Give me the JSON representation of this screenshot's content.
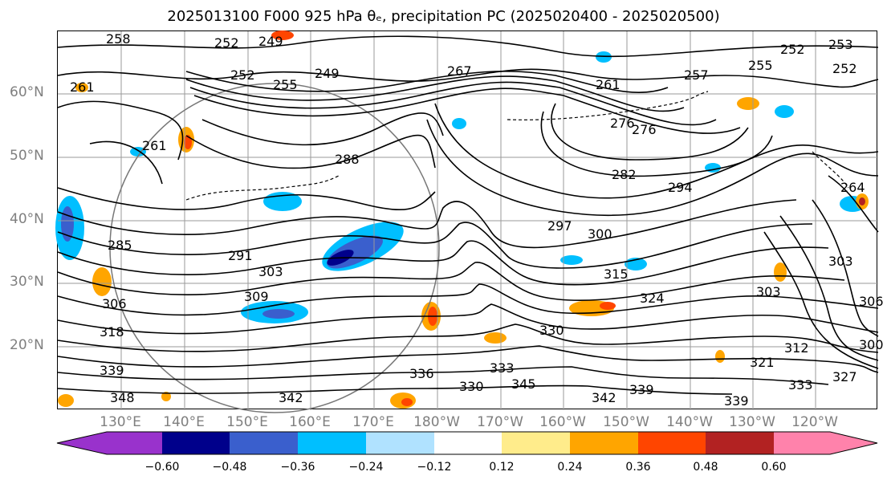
{
  "title": "2025013100 F000 925 hPa θₑ, precipitation PC (2025020400 - 2025020500)",
  "lat_labels": [
    "60°N",
    "50°N",
    "40°N",
    "30°N",
    "20°N"
  ],
  "lon_labels": [
    "130°E",
    "140°E",
    "150°E",
    "160°E",
    "170°E",
    "180°W",
    "170°W",
    "160°W",
    "150°W",
    "140°W",
    "130°W",
    "120°W"
  ],
  "contour_labels": [
    "258",
    "252",
    "249",
    "252",
    "255",
    "249",
    "261",
    "267",
    "261",
    "276",
    "257",
    "252",
    "253",
    "255",
    "252",
    "276",
    "282",
    "294",
    "288",
    "285",
    "291",
    "303",
    "297",
    "300",
    "315",
    "309",
    "306",
    "318",
    "339",
    "324",
    "330",
    "336",
    "333",
    "345",
    "348",
    "330",
    "342",
    "339",
    "342",
    "339",
    "303",
    "303",
    "312",
    "321",
    "333",
    "327",
    "300",
    "306",
    "261",
    "264"
  ],
  "colorbar": {
    "ticks": [
      "−0.60",
      "−0.48",
      "−0.36",
      "−0.24",
      "−0.12",
      "0.12",
      "0.24",
      "0.36",
      "0.48",
      "0.60"
    ],
    "colors": [
      "#9932cc",
      "#00008b",
      "#3a5fcd",
      "#00bfff",
      "#b0e2ff",
      "#ffffff",
      "#ffec8b",
      "#ffa500",
      "#ff4500",
      "#b22222",
      "#ff82ab"
    ]
  }
}
